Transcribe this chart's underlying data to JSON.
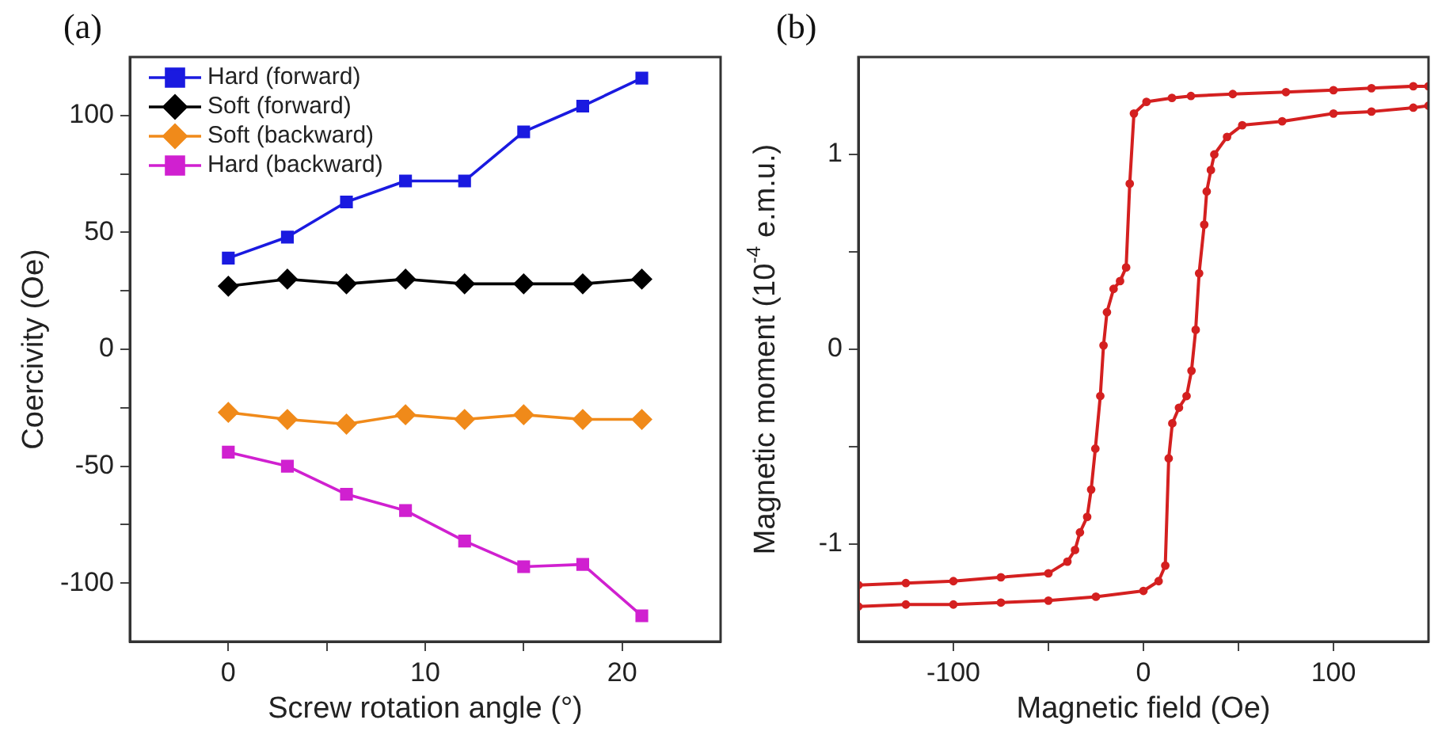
{
  "chart_data": [
    {
      "type": "line",
      "title": "(a)",
      "xlabel": "Screw rotation angle (°)",
      "ylabel": "Coercivity (Oe)",
      "x": [
        0,
        3,
        6,
        9,
        12,
        15,
        18,
        21
      ],
      "series": [
        {
          "name": "Hard (forward)",
          "color": "#1a1ae0",
          "marker": "square",
          "values": [
            39,
            48,
            63,
            72,
            72,
            93,
            104,
            116
          ]
        },
        {
          "name": "Soft (forward)",
          "color": "#000000",
          "marker": "diamond",
          "values": [
            27,
            30,
            28,
            30,
            28,
            28,
            28,
            30
          ]
        },
        {
          "name": "Soft (backward)",
          "color": "#f08a1a",
          "marker": "diamond",
          "values": [
            -27,
            -30,
            -32,
            -28,
            -30,
            -28,
            -30,
            -30
          ]
        },
        {
          "name": "Hard (backward)",
          "color": "#d020d0",
          "marker": "square",
          "values": [
            -44,
            -50,
            -62,
            -69,
            -82,
            -93,
            -92,
            -114
          ]
        }
      ],
      "xlim": [
        -5,
        25
      ],
      "xticks": [
        0,
        {
          "value": 5,
          "label": null
        },
        10,
        {
          "value": 15,
          "label": null
        },
        20
      ],
      "ylim": [
        -125,
        125
      ],
      "yticks": [
        -100,
        {
          "value": -75,
          "label": null
        },
        -50,
        {
          "value": -25,
          "label": null
        },
        0,
        {
          "value": 25,
          "label": null
        },
        50,
        {
          "value": 75,
          "label": null
        },
        100
      ],
      "grid": false,
      "legend": "top left",
      "line_style": "solid"
    },
    {
      "type": "line",
      "title": "(b)",
      "xlabel": "Magnetic field (Oe)",
      "ylabel": "Magnetic moment (10$^{-4}$ e.m.u.)",
      "series": [
        {
          "color": "#d42020",
          "marker": "circle",
          "x": [
            150,
            142,
            120,
            100,
            75,
            47,
            25,
            15,
            1.6,
            -5,
            -7.2,
            -9.1,
            -12.3,
            -15.7,
            -19.2,
            -21,
            -22.7,
            -25.3,
            -27.5,
            -29.6,
            -33.4,
            -36,
            -40,
            -50,
            -75,
            -100,
            -125,
            -150,
            -150,
            -125,
            -100,
            -75,
            -50,
            -25,
            0,
            8,
            11.5,
            13.3,
            15.2,
            18.7,
            22.7,
            25.3,
            27.5,
            29.3,
            32,
            33.3,
            35.5,
            37.3,
            44,
            52,
            73,
            100,
            120,
            142,
            150
          ],
          "values": [
            1.35,
            1.35,
            1.34,
            1.33,
            1.32,
            1.31,
            1.3,
            1.29,
            1.27,
            1.21,
            0.85,
            0.42,
            0.35,
            0.31,
            0.19,
            0.02,
            -0.24,
            -0.51,
            -0.72,
            -0.86,
            -0.94,
            -1.03,
            -1.09,
            -1.15,
            -1.17,
            -1.19,
            -1.2,
            -1.21,
            -1.32,
            -1.31,
            -1.31,
            -1.3,
            -1.29,
            -1.27,
            -1.24,
            -1.19,
            -1.11,
            -0.56,
            -0.38,
            -0.3,
            -0.24,
            -0.11,
            0.1,
            0.39,
            0.64,
            0.81,
            0.92,
            1.0,
            1.09,
            1.15,
            1.17,
            1.21,
            1.22,
            1.24,
            1.25
          ]
        }
      ],
      "xlim": [
        -150,
        150
      ],
      "xticks": [
        -100,
        {
          "value": -50,
          "label": null
        },
        0,
        {
          "value": 50,
          "label": null
        },
        100
      ],
      "ylim": [
        -1.5,
        1.5
      ],
      "yticks": [
        -1,
        {
          "value": -0.5,
          "label": null
        },
        0,
        {
          "value": 0.5,
          "label": null
        },
        1
      ],
      "grid": false,
      "line_style": "solid"
    }
  ]
}
